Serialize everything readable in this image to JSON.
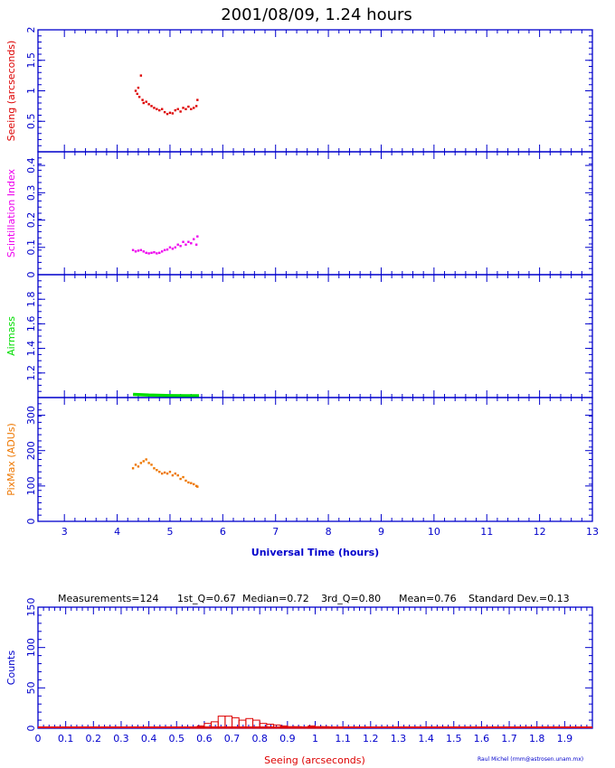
{
  "title": "2001/08/09, 1.24 hours",
  "colors": {
    "axis": "#0000cc",
    "seeing": "#dd0000",
    "scint": "#ee00ee",
    "airmass": "#00dd00",
    "pixmax": "#ee7700",
    "histogram": "#dd0000"
  },
  "chart_data": [
    {
      "type": "scatter",
      "ylabel": "Seeing (arcseconds)",
      "ylim": [
        0,
        2
      ],
      "yticks": [
        "0.5",
        "1",
        "1.5",
        "2"
      ],
      "xlim": [
        2.5,
        13
      ],
      "points_x": [
        4.35,
        4.38,
        4.4,
        4.42,
        4.45,
        4.48,
        4.5,
        4.55,
        4.6,
        4.65,
        4.7,
        4.75,
        4.8,
        4.85,
        4.9,
        4.95,
        5.0,
        5.05,
        5.1,
        5.15,
        5.2,
        5.25,
        5.3,
        5.35,
        5.4,
        5.45,
        5.5,
        5.52
      ],
      "points_y": [
        1.0,
        0.95,
        1.05,
        0.9,
        1.25,
        0.85,
        0.8,
        0.82,
        0.78,
        0.75,
        0.72,
        0.7,
        0.68,
        0.7,
        0.65,
        0.62,
        0.64,
        0.63,
        0.68,
        0.7,
        0.66,
        0.72,
        0.7,
        0.74,
        0.7,
        0.72,
        0.75,
        0.85
      ]
    },
    {
      "type": "scatter",
      "ylabel": "Scintillation Index",
      "ylim": [
        0,
        0.45
      ],
      "yticks": [
        "0",
        "0.1",
        "0.2",
        "0.3",
        "0.4"
      ],
      "xlim": [
        2.5,
        13
      ],
      "points_x": [
        4.3,
        4.35,
        4.4,
        4.45,
        4.5,
        4.55,
        4.6,
        4.65,
        4.7,
        4.75,
        4.8,
        4.85,
        4.9,
        4.95,
        5.0,
        5.05,
        5.1,
        5.15,
        5.2,
        5.25,
        5.3,
        5.35,
        5.4,
        5.45,
        5.5,
        5.52
      ],
      "points_y": [
        0.09,
        0.085,
        0.088,
        0.09,
        0.085,
        0.08,
        0.078,
        0.08,
        0.082,
        0.078,
        0.08,
        0.085,
        0.09,
        0.092,
        0.1,
        0.095,
        0.1,
        0.11,
        0.105,
        0.12,
        0.11,
        0.12,
        0.115,
        0.13,
        0.11,
        0.14
      ]
    },
    {
      "type": "line",
      "ylabel": "Airmass",
      "ylim": [
        1,
        2
      ],
      "yticks": [
        "1.2",
        "1.4",
        "1.6",
        "1.8"
      ],
      "xlim": [
        2.5,
        13
      ],
      "x": [
        4.3,
        4.6,
        5.0,
        5.3,
        5.55
      ],
      "values": [
        1.026,
        1.02,
        1.016,
        1.015,
        1.015
      ]
    },
    {
      "type": "scatter",
      "ylabel": "PixMax (ADUs)",
      "ylim": [
        0,
        350
      ],
      "yticks": [
        "0",
        "100",
        "200",
        "300"
      ],
      "xlim": [
        2.5,
        13
      ],
      "xticks": [
        "3",
        "4",
        "5",
        "6",
        "7",
        "8",
        "9",
        "10",
        "11",
        "12",
        "13"
      ],
      "xlabel": "Universal Time (hours)",
      "points_x": [
        4.3,
        4.35,
        4.4,
        4.45,
        4.5,
        4.55,
        4.6,
        4.65,
        4.7,
        4.75,
        4.8,
        4.85,
        4.9,
        4.95,
        5.0,
        5.05,
        5.1,
        5.15,
        5.2,
        5.25,
        5.3,
        5.35,
        5.4,
        5.45,
        5.5,
        5.52
      ],
      "points_y": [
        150,
        160,
        155,
        165,
        170,
        175,
        165,
        160,
        150,
        145,
        140,
        135,
        138,
        135,
        140,
        130,
        135,
        130,
        120,
        125,
        115,
        110,
        108,
        105,
        100,
        98
      ]
    },
    {
      "type": "bar",
      "header": {
        "measurements": "Measurements=124",
        "q1": "1st_Q=0.67",
        "median": "Median=0.72",
        "q3": "3rd_Q=0.80",
        "mean": "Mean=0.76",
        "std": "Standard Dev.=0.13"
      },
      "ylabel": "Counts",
      "ylim": [
        0,
        150
      ],
      "yticks": [
        "0",
        "50",
        "100",
        "150"
      ],
      "xlim": [
        0,
        2
      ],
      "xticks": [
        "0",
        "0.1",
        "0.2",
        "0.3",
        "0.4",
        "0.5",
        "0.6",
        "0.7",
        "0.8",
        "0.9",
        "1",
        "1.1",
        "1.2",
        "1.3",
        "1.4",
        "1.5",
        "1.6",
        "1.7",
        "1.8",
        "1.9"
      ],
      "xlabel": "Seeing (arcseconds)",
      "bin_start": 0.55,
      "bin_width": 0.025,
      "values": [
        1,
        3,
        6,
        8,
        15,
        15,
        13,
        10,
        12,
        10,
        6,
        5,
        4,
        3,
        2,
        2,
        1,
        3,
        2,
        2,
        1,
        1
      ]
    }
  ],
  "credit": "Raul Michel (rmm@astrosen.unam.mx)"
}
